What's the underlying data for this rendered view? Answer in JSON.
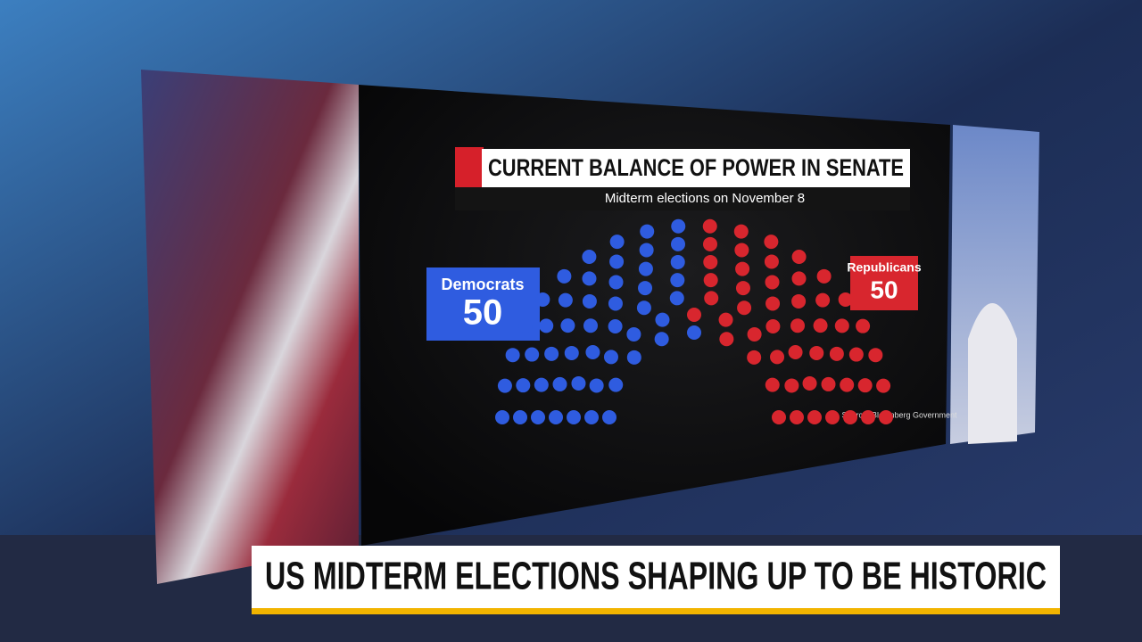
{
  "chart_data": {
    "type": "parliament",
    "title": "CURRENT BALANCE OF POWER IN SENATE",
    "subtitle": "Midterm elections on November 8",
    "source": "Source: Bloomberg Government",
    "categories": [
      "Democrats",
      "Republicans"
    ],
    "values": [
      50,
      50
    ],
    "colors": [
      "#2f5ce0",
      "#d8262e"
    ]
  },
  "lower_third": {
    "headline": "US MIDTERM ELECTIONS SHAPING UP TO BE HISTORIC"
  }
}
